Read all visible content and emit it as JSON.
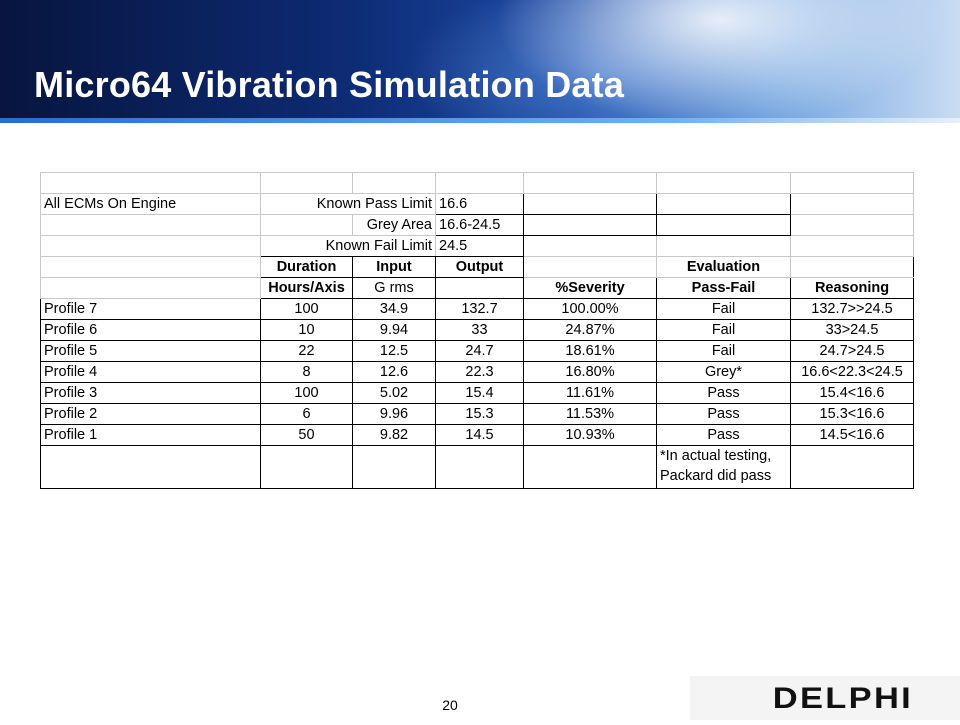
{
  "slide": {
    "title": "Micro64 Vibration Simulation Data",
    "page_number": "20",
    "logo_text": "DELPHI"
  },
  "table": {
    "scope_label": "All ECMs On Engine",
    "limits": [
      {
        "label": "Known Pass Limit",
        "value": "16.6"
      },
      {
        "label": "Grey Area",
        "value": "16.6-24.5"
      },
      {
        "label": "Known Fail Limit",
        "value": "24.5"
      }
    ],
    "header1": {
      "duration": "Duration",
      "input": "Input",
      "output": "Output",
      "evaluation": "Evaluation"
    },
    "header2": {
      "hours": "Hours/Axis",
      "grms": "G rms",
      "severity": "%Severity",
      "passfail": "Pass-Fail",
      "reasoning": "Reasoning"
    },
    "rows": [
      {
        "profile": "Profile 7",
        "hours": "100",
        "input": "34.9",
        "output": "132.7",
        "severity": "100.00%",
        "result": "Fail",
        "reasoning": "132.7>>24.5"
      },
      {
        "profile": "Profile 6",
        "hours": "10",
        "input": "9.94",
        "output": "33",
        "severity": "24.87%",
        "result": "Fail",
        "reasoning": "33>24.5"
      },
      {
        "profile": "Profile 5",
        "hours": "22",
        "input": "12.5",
        "output": "24.7",
        "severity": "18.61%",
        "result": "Fail",
        "reasoning": "24.7>24.5"
      },
      {
        "profile": "Profile 4",
        "hours": "8",
        "input": "12.6",
        "output": "22.3",
        "severity": "16.80%",
        "result": "Grey*",
        "reasoning": "16.6<22.3<24.5"
      },
      {
        "profile": "Profile 3",
        "hours": "100",
        "input": "5.02",
        "output": "15.4",
        "severity": "11.61%",
        "result": "Pass",
        "reasoning": "15.4<16.6"
      },
      {
        "profile": "Profile 2",
        "hours": "6",
        "input": "9.96",
        "output": "15.3",
        "severity": "11.53%",
        "result": "Pass",
        "reasoning": "15.3<16.6"
      },
      {
        "profile": "Profile 1",
        "hours": "50",
        "input": "9.82",
        "output": "14.5",
        "severity": "10.93%",
        "result": "Pass",
        "reasoning": "14.5<16.6"
      }
    ],
    "footnote_line1": "*In actual testing,",
    "footnote_line2": "Packard did pass"
  }
}
